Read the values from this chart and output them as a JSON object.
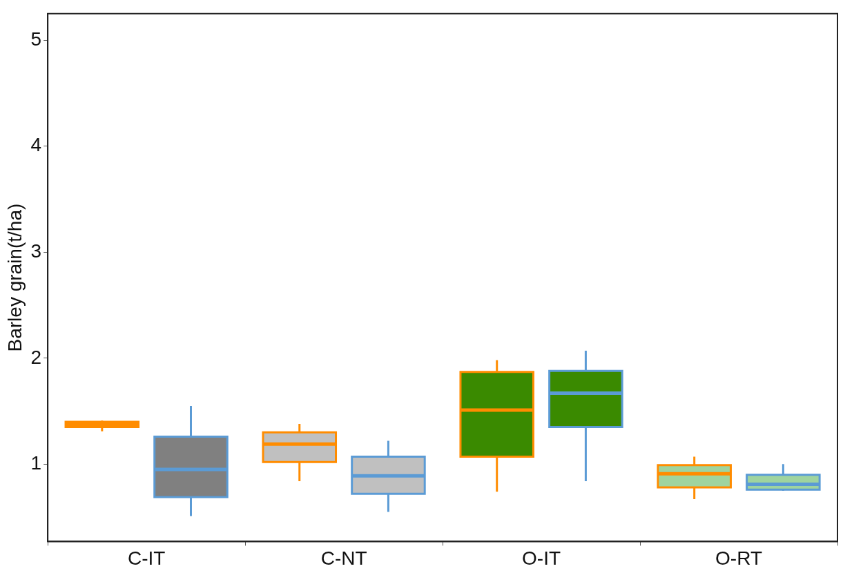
{
  "chart_data": {
    "type": "box",
    "ylabel": "Barley grain(t/ha)",
    "categories": [
      "C-IT",
      "C-NT",
      "O-IT",
      "O-RT"
    ],
    "ylim": [
      0.27,
      5.25
    ],
    "yticks": [
      1,
      2,
      3,
      4,
      5
    ],
    "grid": false,
    "legend": false,
    "series": [
      {
        "color": "#ff8c00",
        "colors": [
          "#ff8c00",
          "#c0c0c0",
          "#3a8a00",
          "#9fd49f"
        ],
        "boxes": [
          {
            "low": 1.31,
            "q1": 1.35,
            "median": 1.38,
            "q3": 1.4,
            "high": 1.41
          },
          {
            "low": 0.84,
            "q1": 1.02,
            "median": 1.19,
            "q3": 1.3,
            "high": 1.38
          },
          {
            "low": 0.74,
            "q1": 1.07,
            "median": 1.51,
            "q3": 1.87,
            "high": 1.98
          },
          {
            "low": 0.67,
            "q1": 0.78,
            "median": 0.91,
            "q3": 0.99,
            "high": 1.07
          }
        ]
      },
      {
        "color": "#5b9bd5",
        "colors": [
          "#808080",
          "#c0c0c0",
          "#3a8a00",
          "#9fd49f"
        ],
        "boxes": [
          {
            "low": 0.51,
            "q1": 0.69,
            "median": 0.95,
            "q3": 1.26,
            "high": 1.55
          },
          {
            "low": 0.55,
            "q1": 0.72,
            "median": 0.89,
            "q3": 1.07,
            "high": 1.22
          },
          {
            "low": 0.84,
            "q1": 1.35,
            "median": 1.67,
            "q3": 1.88,
            "high": 2.07
          },
          {
            "low": 0.75,
            "q1": 0.76,
            "median": 0.81,
            "q3": 0.9,
            "high": 1.0
          }
        ]
      }
    ]
  }
}
